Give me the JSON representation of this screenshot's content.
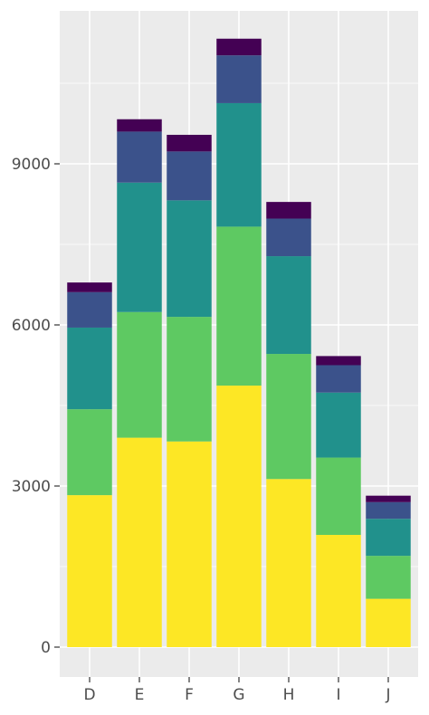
{
  "chart_data": {
    "type": "bar",
    "stacked": true,
    "categories": [
      "D",
      "E",
      "F",
      "G",
      "H",
      "I",
      "J"
    ],
    "series": [
      {
        "color": "#fde725",
        "values": [
          2830,
          3900,
          3830,
          4870,
          3130,
          2090,
          900
        ]
      },
      {
        "color": "#5ec962",
        "values": [
          1600,
          2340,
          2320,
          2960,
          2330,
          1440,
          800
        ]
      },
      {
        "color": "#21918c",
        "values": [
          1520,
          2410,
          2170,
          2300,
          1820,
          1210,
          690
        ]
      },
      {
        "color": "#3b528b",
        "values": [
          660,
          950,
          910,
          890,
          700,
          510,
          310
        ]
      },
      {
        "color": "#440154",
        "values": [
          180,
          230,
          310,
          310,
          310,
          170,
          120
        ]
      }
    ],
    "ylim": [
      -530,
      11800
    ],
    "yticks": [
      0,
      3000,
      6000,
      9000
    ],
    "ytick_labels": [
      "0",
      "3000",
      "6000",
      "9000"
    ],
    "grid": true,
    "legend": "none",
    "background": "#ebebeb"
  }
}
